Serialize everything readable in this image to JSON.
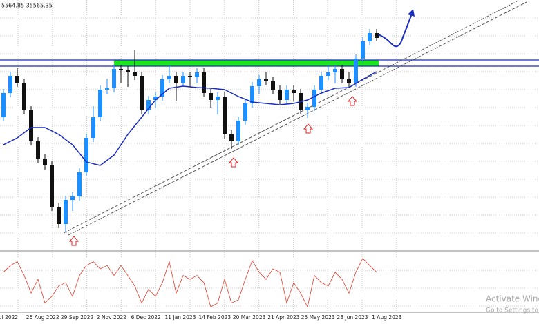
{
  "chart_data": [
    {
      "type": "candlestick",
      "header": "5564.85 35565.35",
      "x_labels": [
        "ul 2022",
        "26 Aug 2022",
        "29 Sep 2022",
        "2 Nov 2022",
        "6 Dec 2022",
        "11 Jan 2023",
        "14 Feb 2023",
        "20 Mar 2023",
        "21 Apr 2023",
        "25 May 2023",
        "28 Jun 2023",
        "1 Aug 2023"
      ],
      "open": [
        32500,
        33375,
        34000,
        33750,
        32750,
        31625,
        31000,
        30750,
        29250,
        28625,
        29500,
        29625,
        30500,
        31750,
        32500,
        33500,
        33550,
        34250,
        34200,
        34125,
        34000,
        32750,
        33125,
        33250,
        33875,
        34000,
        33750,
        34000,
        33950,
        34125,
        33375,
        33125,
        33250,
        31875,
        31625,
        32375,
        33000,
        33625,
        33875,
        33800,
        33500,
        33125,
        33500,
        33375,
        32750,
        32875,
        33500,
        34000,
        34125,
        34250,
        33875,
        33750,
        34625,
        35250,
        35550
      ],
      "high": [
        33525,
        34150,
        34275,
        33900,
        32900,
        31775,
        31150,
        30900,
        29400,
        29650,
        29775,
        30650,
        31900,
        32900,
        33650,
        33900,
        34400,
        34400,
        34350,
        34950,
        34150,
        33275,
        33400,
        34025,
        34400,
        34150,
        34150,
        34150,
        34275,
        34275,
        33525,
        33400,
        33400,
        32025,
        32525,
        33150,
        33775,
        34025,
        34150,
        33950,
        33650,
        33650,
        33650,
        33525,
        33025,
        33650,
        34150,
        34400,
        34400,
        34400,
        34150,
        34775,
        35400,
        35700,
        35700
      ],
      "low": [
        32350,
        33225,
        33600,
        32600,
        31475,
        30850,
        30600,
        29100,
        28475,
        28350,
        29100,
        29475,
        30350,
        31600,
        32350,
        33350,
        33400,
        33725,
        33600,
        33850,
        32600,
        32600,
        32850,
        33100,
        33725,
        33100,
        33600,
        33600,
        33725,
        33225,
        32850,
        32600,
        31725,
        31350,
        31475,
        32225,
        32850,
        33350,
        33650,
        33350,
        32975,
        32975,
        33100,
        32600,
        32475,
        32725,
        33350,
        33850,
        33725,
        33725,
        33600,
        33600,
        34475,
        35100,
        35250
      ],
      "close": [
        33375,
        34000,
        33750,
        32750,
        31625,
        31000,
        30750,
        29250,
        28625,
        29500,
        29625,
        30500,
        31750,
        32500,
        33500,
        33550,
        34250,
        34200,
        34125,
        34000,
        32750,
        33125,
        33250,
        33875,
        34000,
        33750,
        34000,
        33950,
        34125,
        33375,
        33125,
        33250,
        31875,
        31625,
        32375,
        33000,
        33625,
        33875,
        33800,
        33500,
        33125,
        33500,
        33375,
        32750,
        32875,
        33500,
        34000,
        34125,
        34250,
        33875,
        33750,
        34625,
        35250,
        35550,
        35375
      ],
      "up_color": "#1e8fff",
      "down_color": "#111111",
      "ma": {
        "color": "#1a2cc0",
        "values": [
          31500,
          31750,
          32125,
          32125,
          31875,
          31500,
          30875,
          30750,
          31125,
          31875,
          32500,
          33125,
          33550,
          33625,
          33575,
          33550,
          33500,
          33250,
          33050,
          33000,
          32950,
          33000,
          33125,
          33375,
          33550,
          33575,
          33875,
          34150
        ]
      },
      "ylim": [
        27700,
        36750
      ]
    },
    {
      "type": "line",
      "color": "#e03a2a",
      "ylim": [
        0,
        100
      ],
      "values": [
        69,
        81,
        88,
        63,
        31,
        56,
        13,
        25,
        44,
        50,
        25,
        63,
        81,
        88,
        75,
        81,
        63,
        81,
        63,
        44,
        13,
        38,
        25,
        50,
        88,
        31,
        63,
        56,
        63,
        50,
        6,
        13,
        56,
        13,
        19,
        56,
        90,
        69,
        56,
        75,
        69,
        13,
        50,
        31,
        6,
        63,
        50,
        44,
        69,
        56,
        31,
        69,
        94,
        81,
        69
      ]
    }
  ],
  "watermark": {
    "title": "Activate Windows",
    "text": "Go to Settings to activate Windows."
  }
}
